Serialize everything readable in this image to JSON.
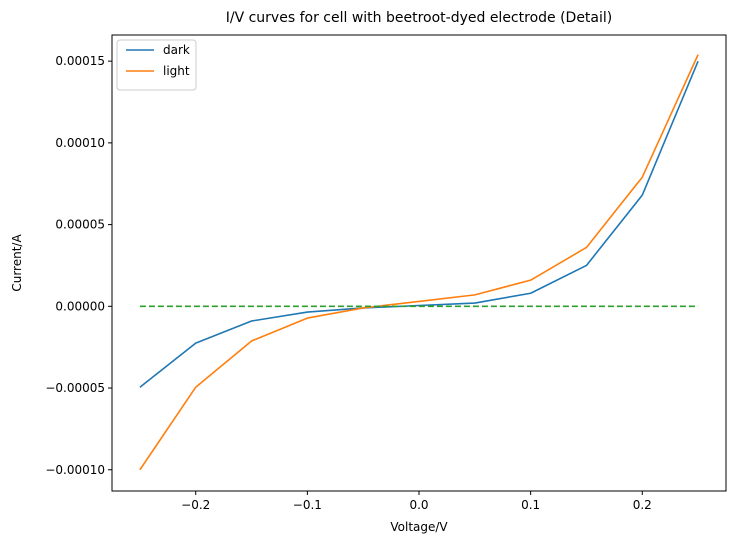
{
  "chart_data": {
    "type": "line",
    "title": "I/V curves for cell with beetroot-dyed electrode (Detail)",
    "xlabel": "Voltage/V",
    "ylabel": "Current/A",
    "xlim": [
      -0.275,
      0.275
    ],
    "ylim": [
      -0.000113,
      0.000166
    ],
    "x_ticks": [
      -0.2,
      -0.1,
      0.0,
      0.1,
      0.2
    ],
    "x_tick_labels": [
      "−0.2",
      "−0.1",
      "0.0",
      "0.1",
      "0.2"
    ],
    "y_ticks": [
      -0.0001,
      -5e-05,
      0.0,
      5e-05,
      0.0001,
      0.00015
    ],
    "y_tick_labels": [
      "−0.00010",
      "−0.00005",
      "0.00000",
      "0.00005",
      "0.00010",
      "0.00015"
    ],
    "grid": false,
    "legend_position": "top-left",
    "x": [
      -0.25,
      -0.2,
      -0.15,
      -0.1,
      -0.05,
      0.0,
      0.05,
      0.1,
      0.15,
      0.2,
      0.25
    ],
    "series": [
      {
        "name": "dark",
        "color": "#1f77b4",
        "style": "solid",
        "values": [
          -4.95e-05,
          -2.25e-05,
          -9e-06,
          -3.5e-06,
          -1e-06,
          5e-07,
          2e-06,
          8e-06,
          2.5e-05,
          6.8e-05,
          0.00015
        ]
      },
      {
        "name": "light",
        "color": "#ff7f0e",
        "style": "solid",
        "values": [
          -0.0001,
          -4.95e-05,
          -2.12e-05,
          -7.2e-06,
          -1e-06,
          3e-06,
          7e-06,
          1.6e-05,
          3.6e-05,
          7.9e-05,
          0.000154
        ]
      },
      {
        "color": "#2ca02c",
        "style": "dashed",
        "values": [
          0,
          0,
          0,
          0,
          0,
          0,
          0,
          0,
          0,
          0,
          0
        ]
      }
    ]
  }
}
